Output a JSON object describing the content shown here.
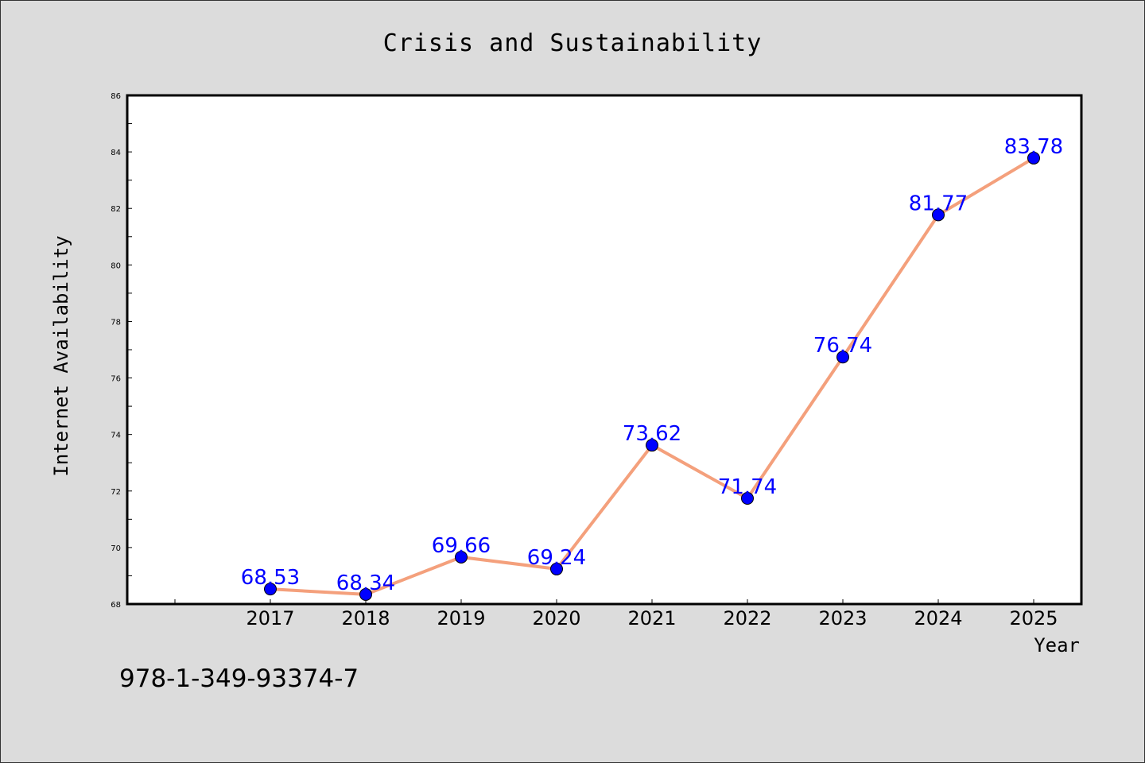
{
  "chart_data": {
    "type": "line",
    "title": "Crisis and Sustainability",
    "xlabel": "Year",
    "ylabel": "Internet Availability",
    "categories": [
      "2017",
      "2018",
      "2019",
      "2020",
      "2021",
      "2022",
      "2023",
      "2024",
      "2025"
    ],
    "series": [
      {
        "values": [
          68.53,
          68.34,
          69.66,
          69.24,
          73.62,
          71.74,
          76.74,
          81.77,
          83.78
        ],
        "labels": [
          "68.53",
          "68.34",
          "69.66",
          "69.24",
          "73.62",
          "71.74",
          "76.74",
          "81.77",
          "83.78"
        ]
      }
    ],
    "ylim": [
      68,
      86
    ],
    "yticks": [
      "68",
      "70",
      "72",
      "74",
      "76",
      "78",
      "80",
      "82",
      "84",
      "86"
    ],
    "grid": false,
    "legend": "none",
    "colors": {
      "line": "#f4a07c",
      "marker": "#0000ff",
      "label": "#0000ff",
      "background": "#dcdcdc",
      "plot": "#ffffff"
    }
  },
  "annotation": "978-1-349-93374-7"
}
